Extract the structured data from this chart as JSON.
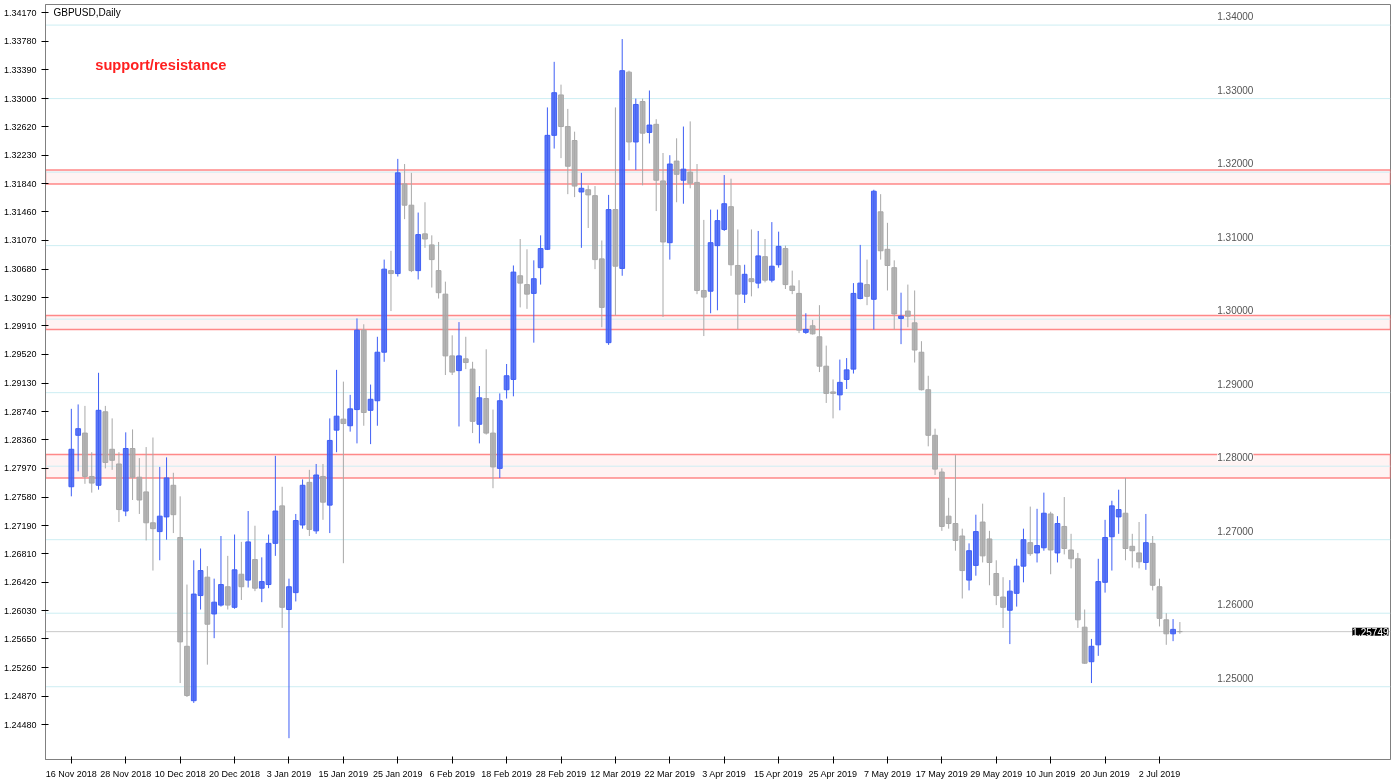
{
  "chart_data": {
    "type": "candlestick",
    "title": "GBPUSD,Daily",
    "annotations": [
      "support/resistance"
    ],
    "categories": [
      "16 Nov 2018",
      null,
      null,
      null,
      null,
      null,
      null,
      null,
      "28 Nov 2018",
      null,
      null,
      null,
      null,
      null,
      null,
      null,
      "10 Dec 2018",
      null,
      null,
      null,
      null,
      null,
      null,
      null,
      "20 Dec 2018",
      null,
      null,
      null,
      null,
      null,
      null,
      null,
      "3 Jan 2019",
      null,
      null,
      null,
      null,
      null,
      null,
      null,
      "15 Jan 2019",
      null,
      null,
      null,
      null,
      null,
      null,
      null,
      "25 Jan 2019",
      null,
      null,
      null,
      null,
      null,
      null,
      null,
      "6 Feb 2019",
      null,
      null,
      null,
      null,
      null,
      null,
      null,
      "18 Feb 2019",
      null,
      null,
      null,
      null,
      null,
      null,
      null,
      "28 Feb 2019",
      null,
      null,
      null,
      null,
      null,
      null,
      null,
      "12 Mar 2019",
      null,
      null,
      null,
      null,
      null,
      null,
      null,
      "22 Mar 2019",
      null,
      null,
      null,
      null,
      null,
      null,
      null,
      "3 Apr 2019",
      null,
      null,
      null,
      null,
      null,
      null,
      null,
      "15 Apr 2019",
      null,
      null,
      null,
      null,
      null,
      null,
      null,
      "25 Apr 2019",
      null,
      null,
      null,
      null,
      null,
      null,
      null,
      "7 May 2019",
      null,
      null,
      null,
      null,
      null,
      null,
      null,
      "17 May 2019",
      null,
      null,
      null,
      null,
      null,
      null,
      null,
      "29 May 2019",
      null,
      null,
      null,
      null,
      null,
      null,
      null,
      "10 Jun 2019",
      null,
      null,
      null,
      null,
      null,
      null,
      null,
      "20 Jun 2019",
      null,
      null,
      null,
      null,
      null,
      null,
      null,
      "2 Jul 2019",
      null,
      null,
      null
    ],
    "ohlc": [
      [
        1.2772,
        1.2878,
        1.2759,
        1.2823
      ],
      [
        1.2842,
        1.2884,
        1.2793,
        1.2851
      ],
      [
        1.2845,
        1.2882,
        1.2776,
        1.2786
      ],
      [
        1.2786,
        1.2819,
        1.2764,
        1.2777
      ],
      [
        1.2774,
        1.2927,
        1.2768,
        1.2876
      ],
      [
        1.2874,
        1.2882,
        1.2797,
        1.2805
      ],
      [
        1.2823,
        1.2865,
        1.2795,
        1.2808
      ],
      [
        1.2803,
        1.2819,
        1.2724,
        1.2741
      ],
      [
        1.2739,
        1.2846,
        1.2732,
        1.2824
      ],
      [
        1.2824,
        1.285,
        1.2754,
        1.2785
      ],
      [
        1.2785,
        1.2811,
        1.2735,
        1.2754
      ],
      [
        1.2765,
        1.2826,
        1.2699,
        1.2723
      ],
      [
        1.2723,
        1.2839,
        1.2658,
        1.2715
      ],
      [
        1.2711,
        1.2799,
        1.2672,
        1.2732
      ],
      [
        1.2731,
        1.2812,
        1.27,
        1.2784
      ],
      [
        1.2774,
        1.2791,
        1.2709,
        1.2734
      ],
      [
        1.2703,
        1.2759,
        1.2505,
        1.2561
      ],
      [
        1.2555,
        1.2639,
        1.2486,
        1.2488
      ],
      [
        1.2481,
        1.2672,
        1.2478,
        1.2626
      ],
      [
        1.2624,
        1.2688,
        1.2605,
        1.2658
      ],
      [
        1.2649,
        1.2664,
        1.253,
        1.2585
      ],
      [
        1.2599,
        1.2647,
        1.2566,
        1.2615
      ],
      [
        1.2611,
        1.2705,
        1.2609,
        1.2639
      ],
      [
        1.2636,
        1.2678,
        1.2605,
        1.2611
      ],
      [
        1.2608,
        1.2707,
        1.2606,
        1.2659
      ],
      [
        1.2653,
        1.2697,
        1.2618,
        1.2636
      ],
      [
        1.2645,
        1.2739,
        1.2635,
        1.2697
      ],
      [
        1.2673,
        1.2719,
        1.263,
        1.2634
      ],
      [
        1.2634,
        1.2676,
        1.2615,
        1.2643
      ],
      [
        1.2639,
        1.2707,
        1.2634,
        1.2695
      ],
      [
        1.2695,
        1.2814,
        1.2678,
        1.2739
      ],
      [
        1.2746,
        1.2772,
        1.258,
        1.2608
      ],
      [
        1.2605,
        1.2647,
        1.243,
        1.2636
      ],
      [
        1.2628,
        1.2735,
        1.2616,
        1.2726
      ],
      [
        1.272,
        1.2782,
        1.2715,
        1.2774
      ],
      [
        1.2778,
        1.2795,
        1.2705,
        1.2714
      ],
      [
        1.2712,
        1.2803,
        1.2708,
        1.2788
      ],
      [
        1.2786,
        1.2803,
        1.2727,
        1.2751
      ],
      [
        1.2747,
        1.2865,
        1.2709,
        1.2835
      ],
      [
        1.2849,
        1.2931,
        1.2819,
        1.2868
      ],
      [
        1.2864,
        1.2915,
        1.2668,
        1.2858
      ],
      [
        1.2855,
        1.2897,
        1.2847,
        1.2878
      ],
      [
        1.2877,
        1.3001,
        1.2831,
        1.2985
      ],
      [
        1.2985,
        1.2993,
        1.2855,
        1.2873
      ],
      [
        1.2876,
        1.2911,
        1.283,
        1.2891
      ],
      [
        1.2889,
        1.2976,
        1.2855,
        1.2955
      ],
      [
        1.2955,
        1.3081,
        1.2942,
        1.3068
      ],
      [
        1.3066,
        1.3093,
        1.3011,
        1.3062
      ],
      [
        1.3062,
        1.3218,
        1.3058,
        1.3199
      ],
      [
        1.3184,
        1.3211,
        1.3136,
        1.3155
      ],
      [
        1.3155,
        1.3199,
        1.3064,
        1.3066
      ],
      [
        1.3066,
        1.3145,
        1.3054,
        1.3115
      ],
      [
        1.3116,
        1.3159,
        1.3097,
        1.3109
      ],
      [
        1.3101,
        1.3114,
        1.3043,
        1.3081
      ],
      [
        1.3066,
        1.3105,
        1.3028,
        1.3036
      ],
      [
        1.3034,
        1.3051,
        1.2924,
        1.295
      ],
      [
        1.295,
        1.2978,
        1.2924,
        1.2928
      ],
      [
        1.293,
        1.2996,
        1.2854,
        1.295
      ],
      [
        1.2946,
        1.2976,
        1.2932,
        1.2941
      ],
      [
        1.2932,
        1.2942,
        1.2845,
        1.2861
      ],
      [
        1.2857,
        1.2909,
        1.2831,
        1.2893
      ],
      [
        1.2892,
        1.2959,
        1.2843,
        1.2845
      ],
      [
        1.2845,
        1.2877,
        1.277,
        1.2799
      ],
      [
        1.2797,
        1.2899,
        1.2784,
        1.2889
      ],
      [
        1.2904,
        1.2939,
        1.2892,
        1.2923
      ],
      [
        1.2918,
        1.3073,
        1.2895,
        1.3064
      ],
      [
        1.3059,
        1.3109,
        1.3016,
        1.3049
      ],
      [
        1.3047,
        1.3095,
        1.3014,
        1.3034
      ],
      [
        1.3035,
        1.308,
        1.2968,
        1.3055
      ],
      [
        1.307,
        1.3114,
        1.3047,
        1.3096
      ],
      [
        1.3095,
        1.3288,
        1.3094,
        1.325
      ],
      [
        1.325,
        1.335,
        1.3232,
        1.3308
      ],
      [
        1.3305,
        1.3319,
        1.3219,
        1.3262
      ],
      [
        1.3262,
        1.3286,
        1.317,
        1.3208
      ],
      [
        1.3243,
        1.3255,
        1.3166,
        1.3181
      ],
      [
        1.3173,
        1.3199,
        1.3097,
        1.3178
      ],
      [
        1.3176,
        1.3182,
        1.3124,
        1.3169
      ],
      [
        1.3168,
        1.3181,
        1.3068,
        1.3081
      ],
      [
        1.3082,
        1.3107,
        1.2989,
        1.3016
      ],
      [
        1.2968,
        1.3169,
        1.2965,
        1.3149
      ],
      [
        1.3149,
        1.3288,
        1.3005,
        1.3072
      ],
      [
        1.3069,
        1.3381,
        1.3059,
        1.3338
      ],
      [
        1.3336,
        1.3338,
        1.3216,
        1.3241
      ],
      [
        1.3241,
        1.33,
        1.3203,
        1.3292
      ],
      [
        1.3296,
        1.33,
        1.3182,
        1.3253
      ],
      [
        1.3254,
        1.3311,
        1.3239,
        1.3264
      ],
      [
        1.3265,
        1.3272,
        1.3147,
        1.3189
      ],
      [
        1.3188,
        1.3226,
        1.3003,
        1.3105
      ],
      [
        1.3104,
        1.3223,
        1.3081,
        1.3211
      ],
      [
        1.3215,
        1.3246,
        1.3159,
        1.3197
      ],
      [
        1.3189,
        1.3262,
        1.3157,
        1.3204
      ],
      [
        1.32,
        1.3269,
        1.3178,
        1.3185
      ],
      [
        1.3186,
        1.3211,
        1.3034,
        1.3039
      ],
      [
        1.3039,
        1.3135,
        1.2977,
        1.303
      ],
      [
        1.3038,
        1.3149,
        1.3008,
        1.3104
      ],
      [
        1.31,
        1.3149,
        1.3012,
        1.3134
      ],
      [
        1.3122,
        1.3196,
        1.312,
        1.3157
      ],
      [
        1.3153,
        1.3191,
        1.3059,
        1.3074
      ],
      [
        1.3073,
        1.3122,
        1.2986,
        1.3034
      ],
      [
        1.3034,
        1.3074,
        1.3022,
        1.3061
      ],
      [
        1.3055,
        1.3122,
        1.3031,
        1.3051
      ],
      [
        1.3049,
        1.312,
        1.3042,
        1.3086
      ],
      [
        1.3085,
        1.3109,
        1.305,
        1.3053
      ],
      [
        1.3053,
        1.3132,
        1.305,
        1.3072
      ],
      [
        1.3074,
        1.3119,
        1.307,
        1.3099
      ],
      [
        1.3096,
        1.31,
        1.3041,
        1.3047
      ],
      [
        1.3045,
        1.3066,
        1.3034,
        1.3039
      ],
      [
        1.3035,
        1.3053,
        1.2981,
        1.2985
      ],
      [
        1.2982,
        1.3008,
        1.298,
        1.2986
      ],
      [
        1.2991,
        1.2999,
        1.2979,
        1.298
      ],
      [
        1.2976,
        1.3019,
        1.2928,
        1.2936
      ],
      [
        1.2936,
        1.2964,
        1.2886,
        1.2899
      ],
      [
        1.2901,
        1.2918,
        1.2865,
        1.2899
      ],
      [
        1.2897,
        1.2945,
        1.2876,
        1.2914
      ],
      [
        1.2918,
        1.2947,
        1.2905,
        1.2931
      ],
      [
        1.2932,
        1.3049,
        1.2926,
        1.3035
      ],
      [
        1.3028,
        1.3101,
        1.3027,
        1.3049
      ],
      [
        1.3047,
        1.3081,
        1.3019,
        1.3031
      ],
      [
        1.3027,
        1.3176,
        1.2986,
        1.3174
      ],
      [
        1.3146,
        1.317,
        1.3081,
        1.3093
      ],
      [
        1.3095,
        1.3131,
        1.3039,
        1.3073
      ],
      [
        1.307,
        1.308,
        1.2986,
        1.3007
      ],
      [
        1.3001,
        1.3036,
        1.2966,
        1.3004
      ],
      [
        1.3011,
        1.3047,
        1.2989,
        1.3004
      ],
      [
        1.2995,
        1.3039,
        1.2941,
        1.2958
      ],
      [
        1.2955,
        1.297,
        1.2903,
        1.2904
      ],
      [
        1.2904,
        1.2923,
        1.2827,
        1.2842
      ],
      [
        1.2842,
        1.2851,
        1.2788,
        1.2796
      ],
      [
        1.2792,
        1.2797,
        1.2712,
        1.2718
      ],
      [
        1.2732,
        1.2757,
        1.2715,
        1.2722
      ],
      [
        1.2722,
        1.2815,
        1.2685,
        1.2699
      ],
      [
        1.2705,
        1.2715,
        1.262,
        1.2658
      ],
      [
        1.2645,
        1.2695,
        1.2631,
        1.2685
      ],
      [
        1.2665,
        1.2734,
        1.2651,
        1.2711
      ],
      [
        1.2724,
        1.2749,
        1.2669,
        1.2678
      ],
      [
        1.2701,
        1.2712,
        1.2638,
        1.2669
      ],
      [
        1.2654,
        1.2672,
        1.2611,
        1.2624
      ],
      [
        1.2622,
        1.2649,
        1.258,
        1.2608
      ],
      [
        1.2604,
        1.2645,
        1.2558,
        1.263
      ],
      [
        1.2627,
        1.2674,
        1.2609,
        1.2664
      ],
      [
        1.2664,
        1.2715,
        1.2642,
        1.27
      ],
      [
        1.2696,
        1.2745,
        1.2678,
        1.2681
      ],
      [
        1.2682,
        1.2742,
        1.2669,
        1.2692
      ],
      [
        1.2689,
        1.2764,
        1.2685,
        1.2736
      ],
      [
        1.2735,
        1.2738,
        1.2653,
        1.2686
      ],
      [
        1.2682,
        1.2732,
        1.2669,
        1.2722
      ],
      [
        1.2718,
        1.2758,
        1.268,
        1.2688
      ],
      [
        1.2686,
        1.2708,
        1.2661,
        1.2674
      ],
      [
        1.2674,
        1.2682,
        1.258,
        1.2591
      ],
      [
        1.2581,
        1.2605,
        1.2531,
        1.2532
      ],
      [
        1.2534,
        1.2565,
        1.2505,
        1.2555
      ],
      [
        1.2557,
        1.2674,
        1.2542,
        1.2643
      ],
      [
        1.2642,
        1.2727,
        1.2628,
        1.2703
      ],
      [
        1.2704,
        1.2753,
        1.2658,
        1.2746
      ],
      [
        1.2731,
        1.2768,
        1.2708,
        1.2741
      ],
      [
        1.2736,
        1.2784,
        1.2672,
        1.2688
      ],
      [
        1.2691,
        1.2708,
        1.2662,
        1.2685
      ],
      [
        1.2682,
        1.2724,
        1.2661,
        1.267
      ],
      [
        1.2669,
        1.2735,
        1.2659,
        1.2696
      ],
      [
        1.2695,
        1.2705,
        1.2631,
        1.2638
      ],
      [
        1.2636,
        1.2647,
        1.2582,
        1.2593
      ],
      [
        1.2591,
        1.26,
        1.2557,
        1.2572
      ],
      [
        1.2572,
        1.2592,
        1.2562,
        1.2578
      ],
      [
        1.2575,
        1.2588,
        1.2572,
        1.2575
      ]
    ],
    "colors": [
      "#3f5ff5",
      "#3f5ff5",
      "#a8a8a8",
      "#a8a8a8",
      "#3f5ff5",
      "#a8a8a8",
      "#a8a8a8",
      "#a8a8a8",
      "#3f5ff5",
      "#a8a8a8",
      "#a8a8a8",
      "#a8a8a8",
      "#a8a8a8",
      "#3f5ff5",
      "#3f5ff5",
      "#a8a8a8",
      "#a8a8a8",
      "#a8a8a8",
      "#3f5ff5",
      "#3f5ff5",
      "#a8a8a8",
      "#3f5ff5",
      "#3f5ff5",
      "#a8a8a8",
      "#3f5ff5",
      "#a8a8a8",
      "#3f5ff5",
      "#a8a8a8",
      "#3f5ff5",
      "#3f5ff5",
      "#3f5ff5",
      "#a8a8a8",
      "#3f5ff5",
      "#3f5ff5",
      "#3f5ff5",
      "#a8a8a8",
      "#3f5ff5",
      "#a8a8a8",
      "#3f5ff5",
      "#3f5ff5",
      "#a8a8a8",
      "#3f5ff5",
      "#3f5ff5",
      "#a8a8a8",
      "#3f5ff5",
      "#3f5ff5",
      "#3f5ff5",
      "#a8a8a8",
      "#3f5ff5",
      "#a8a8a8",
      "#a8a8a8",
      "#3f5ff5",
      "#a8a8a8",
      "#a8a8a8",
      "#a8a8a8",
      "#a8a8a8",
      "#a8a8a8",
      "#3f5ff5",
      "#a8a8a8",
      "#a8a8a8",
      "#3f5ff5",
      "#a8a8a8",
      "#a8a8a8",
      "#3f5ff5",
      "#3f5ff5",
      "#3f5ff5",
      "#a8a8a8",
      "#a8a8a8",
      "#3f5ff5",
      "#3f5ff5",
      "#3f5ff5",
      "#3f5ff5",
      "#a8a8a8",
      "#a8a8a8",
      "#a8a8a8",
      "#3f5ff5",
      "#a8a8a8",
      "#a8a8a8",
      "#a8a8a8",
      "#3f5ff5",
      "#a8a8a8",
      "#3f5ff5",
      "#a8a8a8",
      "#3f5ff5",
      "#a8a8a8",
      "#3f5ff5",
      "#a8a8a8",
      "#a8a8a8",
      "#3f5ff5",
      "#a8a8a8",
      "#3f5ff5",
      "#a8a8a8",
      "#a8a8a8",
      "#a8a8a8",
      "#3f5ff5",
      "#3f5ff5",
      "#3f5ff5",
      "#a8a8a8",
      "#a8a8a8",
      "#3f5ff5",
      "#a8a8a8",
      "#3f5ff5",
      "#a8a8a8",
      "#3f5ff5",
      "#3f5ff5",
      "#a8a8a8",
      "#a8a8a8",
      "#a8a8a8",
      "#3f5ff5",
      "#a8a8a8",
      "#a8a8a8",
      "#a8a8a8",
      "#a8a8a8",
      "#3f5ff5",
      "#3f5ff5",
      "#3f5ff5",
      "#3f5ff5",
      "#a8a8a8",
      "#3f5ff5",
      "#a8a8a8",
      "#a8a8a8",
      "#a8a8a8",
      "#3f5ff5",
      "#a8a8a8",
      "#a8a8a8",
      "#a8a8a8",
      "#a8a8a8",
      "#a8a8a8",
      "#a8a8a8",
      "#a8a8a8",
      "#a8a8a8",
      "#a8a8a8",
      "#3f5ff5",
      "#3f5ff5",
      "#a8a8a8",
      "#a8a8a8",
      "#a8a8a8",
      "#a8a8a8",
      "#3f5ff5",
      "#3f5ff5",
      "#3f5ff5",
      "#a8a8a8",
      "#3f5ff5",
      "#3f5ff5",
      "#a8a8a8",
      "#3f5ff5",
      "#a8a8a8",
      "#a8a8a8",
      "#a8a8a8",
      "#a8a8a8",
      "#3f5ff5",
      "#3f5ff5",
      "#3f5ff5",
      "#3f5ff5",
      "#3f5ff5",
      "#a8a8a8",
      "#a8a8a8",
      "#a8a8a8",
      "#3f5ff5",
      "#a8a8a8",
      "#a8a8a8",
      "#a8a8a8",
      "#3f5ff5",
      "#a8a8a8"
    ],
    "ylim": [
      1.2401,
      1.3428
    ],
    "yticks": [
      {
        "value": 1.3417,
        "label": "1.34170"
      },
      {
        "value": 1.3378,
        "label": "1.33780"
      },
      {
        "value": 1.3339,
        "label": "1.33390"
      },
      {
        "value": 1.33,
        "label": "1.33000"
      },
      {
        "value": 1.3262,
        "label": "1.32620"
      },
      {
        "value": 1.3223,
        "label": "1.32230"
      },
      {
        "value": 1.3184,
        "label": "1.31840"
      },
      {
        "value": 1.3146,
        "label": "1.31460"
      },
      {
        "value": 1.3107,
        "label": "1.31070"
      },
      {
        "value": 1.3068,
        "label": "1.30680"
      },
      {
        "value": 1.3029,
        "label": "1.30290"
      },
      {
        "value": 1.2991,
        "label": "1.29910"
      },
      {
        "value": 1.2952,
        "label": "1.29520"
      },
      {
        "value": 1.2913,
        "label": "1.29130"
      },
      {
        "value": 1.2874,
        "label": "1.28740"
      },
      {
        "value": 1.2836,
        "label": "1.28360"
      },
      {
        "value": 1.2797,
        "label": "1.27970"
      },
      {
        "value": 1.2758,
        "label": "1.27580"
      },
      {
        "value": 1.2719,
        "label": "1.27190"
      },
      {
        "value": 1.2681,
        "label": "1.26810"
      },
      {
        "value": 1.2642,
        "label": "1.26420"
      },
      {
        "value": 1.2603,
        "label": "1.26030"
      },
      {
        "value": 1.2565,
        "label": "1.25650"
      },
      {
        "value": 1.2526,
        "label": "1.25260"
      },
      {
        "value": 1.2487,
        "label": "1.24870"
      },
      {
        "value": 1.2448,
        "label": "1.24480"
      }
    ],
    "ref_lines": [
      {
        "axis": "y",
        "value": 1.34,
        "label": "1.34000",
        "color": "#cdeef3"
      },
      {
        "axis": "y",
        "value": 1.33,
        "label": "1.33000",
        "color": "#cdeef3"
      },
      {
        "axis": "y",
        "value": 1.32,
        "label": "1.32000",
        "color": "#cdeef3"
      },
      {
        "axis": "y",
        "value": 1.31,
        "label": "1.31000",
        "color": "#cdeef3"
      },
      {
        "axis": "y",
        "value": 1.3,
        "label": "1.30000",
        "color": "#cdeef3"
      },
      {
        "axis": "y",
        "value": 1.29,
        "label": "1.29000",
        "color": "#cdeef3"
      },
      {
        "axis": "y",
        "value": 1.28,
        "label": "1.28000",
        "color": "#cdeef3"
      },
      {
        "axis": "y",
        "value": 1.27,
        "label": "1.27000",
        "color": "#cdeef3"
      },
      {
        "axis": "y",
        "value": 1.26,
        "label": "1.26000",
        "color": "#cdeef3"
      },
      {
        "axis": "y",
        "value": 1.25,
        "label": "1.25000",
        "color": "#cdeef3"
      },
      {
        "axis": "y",
        "value": 1.25749,
        "label": "1.25749",
        "color": "#c8c8c8"
      }
    ],
    "bands": [
      {
        "axis": "y",
        "from": 1.3184,
        "to": 1.3203,
        "color": "#ff6b6b"
      },
      {
        "axis": "y",
        "from": 1.2986,
        "to": 1.3005,
        "color": "#ff6b6b"
      },
      {
        "axis": "y",
        "from": 1.2784,
        "to": 1.2816,
        "color": "#ff6b6b"
      }
    ]
  }
}
